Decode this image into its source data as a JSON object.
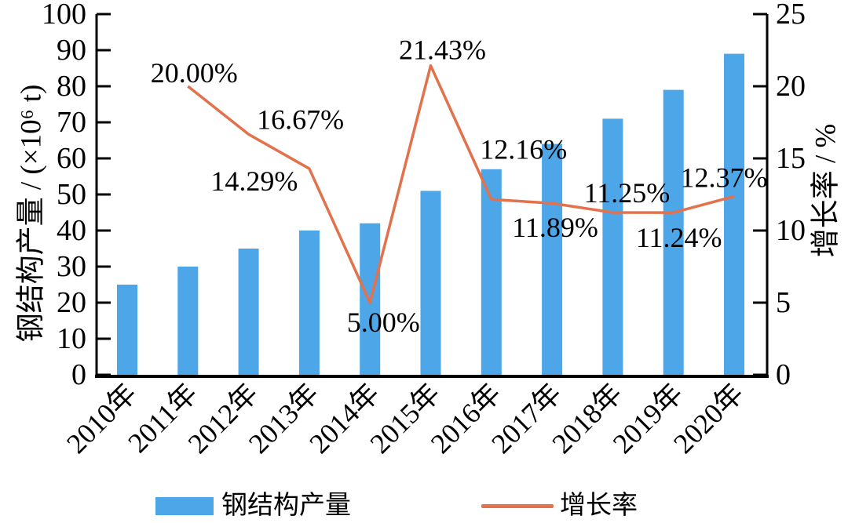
{
  "chart_data": {
    "type": "bar+line",
    "categories": [
      "2010年",
      "2011年",
      "2012年",
      "2013年",
      "2014年",
      "2015年",
      "2016年",
      "2017年",
      "2018年",
      "2019年",
      "2020年"
    ],
    "series": [
      {
        "name": "钢结构产量",
        "type": "bar",
        "axis": "left",
        "color": "#4DA6E8",
        "values": [
          25,
          30,
          35,
          40,
          42,
          51,
          57,
          64,
          71,
          79,
          89
        ]
      },
      {
        "name": "增长率",
        "type": "line",
        "axis": "right",
        "color": "#E2714C",
        "values": [
          null,
          20.0,
          16.67,
          14.29,
          5.0,
          21.43,
          12.16,
          11.89,
          11.25,
          11.24,
          12.37
        ],
        "point_labels": [
          null,
          "20.00%",
          "16.67%",
          "14.29%",
          "5.00%",
          "21.43%",
          "12.16%",
          "11.89%",
          "11.25%",
          "11.24%",
          "12.37%"
        ],
        "label_offsets": [
          null,
          [
            8,
            -17
          ],
          [
            66,
            -19
          ],
          [
            -70,
            16
          ],
          [
            17,
            25
          ],
          [
            15,
            -20
          ],
          [
            41,
            -64
          ],
          [
            4,
            31
          ],
          [
            18,
            -25
          ],
          [
            7,
            32
          ],
          [
            -13,
            -24
          ]
        ]
      }
    ],
    "left_axis": {
      "title": "钢结构产量 / (×10⁶ t)",
      "min": 0,
      "max": 100,
      "step": 10
    },
    "right_axis": {
      "title": "增长率 / %",
      "min": 0,
      "max": 25,
      "step": 5
    },
    "grid": false,
    "legend_position": "bottom",
    "legend": [
      {
        "label": "钢结构产量",
        "swatch": "rect",
        "color": "#4DA6E8"
      },
      {
        "label": "增长率",
        "swatch": "line",
        "color": "#E2714C"
      }
    ],
    "axis_color": "#000000",
    "background": "#FFFFFF"
  }
}
